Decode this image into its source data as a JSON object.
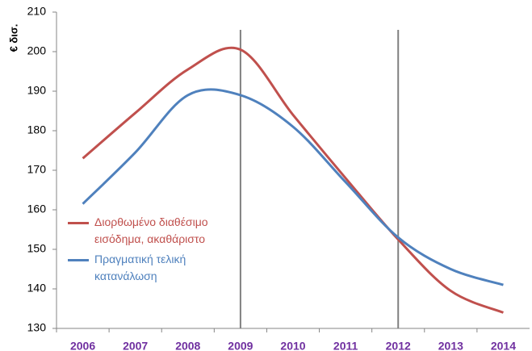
{
  "chart_data": {
    "type": "line",
    "y_label": "€ δισ.",
    "categories": [
      "2006",
      "2007",
      "2008",
      "2009",
      "2010",
      "2011",
      "2012",
      "2013",
      "2014"
    ],
    "series": [
      {
        "name": "Διορθωμένο διαθέσιμο εισόδημα, ακαθάριστο",
        "color": "#c0504d",
        "values": [
          173,
          184.5,
          195.5,
          200.5,
          184,
          168,
          152.5,
          139.5,
          134
        ]
      },
      {
        "name": "Πραγματική τελική κατανάλωση",
        "color": "#4f81bd",
        "values": [
          161.5,
          174.5,
          189,
          189,
          181,
          167,
          153,
          145,
          141
        ]
      }
    ],
    "ylim": [
      130,
      210
    ],
    "yticks": [
      130,
      140,
      150,
      160,
      170,
      180,
      190,
      200,
      210
    ],
    "vlines_at": [
      "2009",
      "2012"
    ],
    "category_color": "#7030a0",
    "grid": false
  }
}
